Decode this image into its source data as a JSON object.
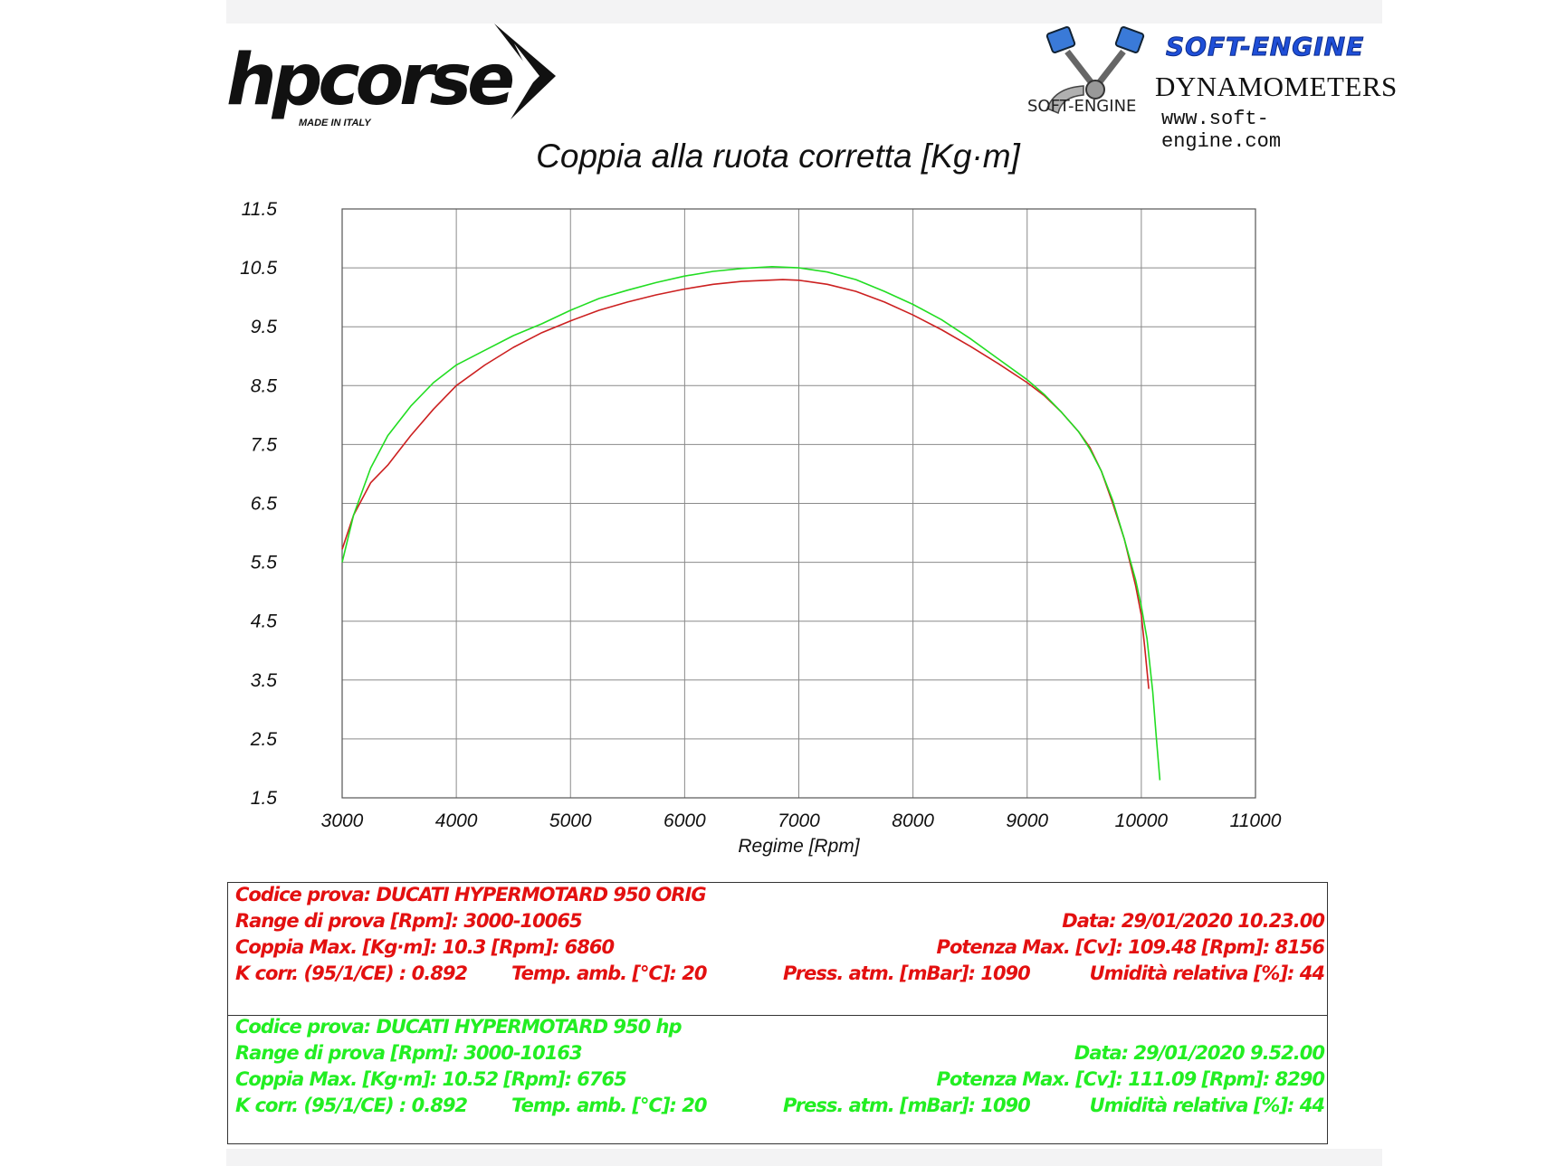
{
  "branding": {
    "left_logo_word": "hpcorse",
    "left_logo_sub": "MADE IN ITALY",
    "right_logo_brand": "SOFT-ENGINE",
    "right_logo_title": "DYNAMOMETERS",
    "right_logo_url": "www.soft-engine.com",
    "right_logo_small": "SOFT-ENGINE"
  },
  "chart_data": {
    "type": "line",
    "title": "Coppia alla ruota corretta [Kg·m]",
    "xlabel": "Regime [Rpm]",
    "ylabel": "",
    "xlim": [
      3000,
      11000
    ],
    "ylim": [
      1.5,
      11.5
    ],
    "xticks": [
      "3000",
      "4000",
      "5000",
      "6000",
      "7000",
      "8000",
      "9000",
      "10000",
      "11000"
    ],
    "yticks": [
      "11.5",
      "10.5",
      "9.5",
      "8.5",
      "7.5",
      "6.5",
      "5.5",
      "4.5",
      "3.5",
      "2.5",
      "1.5"
    ],
    "grid": true,
    "legend": "none",
    "series": [
      {
        "color": "#cc2020",
        "points": [
          [
            3000,
            5.72
          ],
          [
            3100,
            6.3
          ],
          [
            3250,
            6.85
          ],
          [
            3400,
            7.15
          ],
          [
            3600,
            7.65
          ],
          [
            3800,
            8.1
          ],
          [
            4000,
            8.5
          ],
          [
            4250,
            8.85
          ],
          [
            4500,
            9.15
          ],
          [
            4750,
            9.4
          ],
          [
            5000,
            9.6
          ],
          [
            5250,
            9.78
          ],
          [
            5500,
            9.92
          ],
          [
            5750,
            10.04
          ],
          [
            6000,
            10.14
          ],
          [
            6250,
            10.22
          ],
          [
            6500,
            10.27
          ],
          [
            6860,
            10.3
          ],
          [
            7000,
            10.29
          ],
          [
            7250,
            10.22
          ],
          [
            7500,
            10.1
          ],
          [
            7750,
            9.92
          ],
          [
            8000,
            9.7
          ],
          [
            8250,
            9.45
          ],
          [
            8500,
            9.17
          ],
          [
            8750,
            8.87
          ],
          [
            9000,
            8.55
          ],
          [
            9150,
            8.33
          ],
          [
            9300,
            8.05
          ],
          [
            9450,
            7.72
          ],
          [
            9550,
            7.45
          ],
          [
            9650,
            7.05
          ],
          [
            9750,
            6.5
          ],
          [
            9850,
            5.9
          ],
          [
            9950,
            5.1
          ],
          [
            10000,
            4.6
          ],
          [
            10030,
            4.05
          ],
          [
            10065,
            3.35
          ]
        ]
      },
      {
        "color": "#22dd22",
        "points": [
          [
            3000,
            5.5
          ],
          [
            3100,
            6.3
          ],
          [
            3250,
            7.1
          ],
          [
            3400,
            7.65
          ],
          [
            3600,
            8.15
          ],
          [
            3800,
            8.55
          ],
          [
            4000,
            8.85
          ],
          [
            4250,
            9.1
          ],
          [
            4500,
            9.35
          ],
          [
            4750,
            9.55
          ],
          [
            5000,
            9.78
          ],
          [
            5250,
            9.98
          ],
          [
            5500,
            10.12
          ],
          [
            5750,
            10.25
          ],
          [
            6000,
            10.36
          ],
          [
            6250,
            10.44
          ],
          [
            6500,
            10.49
          ],
          [
            6765,
            10.52
          ],
          [
            7000,
            10.5
          ],
          [
            7250,
            10.43
          ],
          [
            7500,
            10.3
          ],
          [
            7750,
            10.1
          ],
          [
            8000,
            9.88
          ],
          [
            8250,
            9.62
          ],
          [
            8500,
            9.3
          ],
          [
            8750,
            8.95
          ],
          [
            9000,
            8.6
          ],
          [
            9150,
            8.35
          ],
          [
            9300,
            8.05
          ],
          [
            9450,
            7.72
          ],
          [
            9550,
            7.42
          ],
          [
            9650,
            7.05
          ],
          [
            9750,
            6.55
          ],
          [
            9850,
            5.9
          ],
          [
            9950,
            5.2
          ],
          [
            10000,
            4.75
          ],
          [
            10050,
            4.2
          ],
          [
            10100,
            3.3
          ],
          [
            10130,
            2.55
          ],
          [
            10163,
            1.8
          ]
        ]
      }
    ]
  },
  "tests": [
    {
      "color": "#e31010",
      "codice": "Codice prova: DUCATI HYPERMOTARD 950 ORIG",
      "range": "Range di prova [Rpm]: 3000-10065",
      "data": "Data: 29/01/2020  10.23.00",
      "coppia": "Coppia Max. [Kg·m]: 10.3  [Rpm]: 6860",
      "potenza": "Potenza Max. [Cv]: 109.48  [Rpm]: 8156",
      "kcorr": "K corr. (95/1/CE) : 0.892",
      "temp": "Temp. amb. [°C]: 20",
      "press": "Press. atm. [mBar]: 1090",
      "umid": "Umidità relativa [%]: 44"
    },
    {
      "color": "#22ee22",
      "codice": "Codice prova: DUCATI HYPERMOTARD 950 hp",
      "range": "Range di prova [Rpm]: 3000-10163",
      "data": "Data: 29/01/2020  9.52.00",
      "coppia": "Coppia Max. [Kg·m]: 10.52  [Rpm]: 6765",
      "potenza": "Potenza Max. [Cv]: 111.09  [Rpm]: 8290",
      "kcorr": "K corr. (95/1/CE) : 0.892",
      "temp": "Temp. amb. [°C]: 20",
      "press": "Press. atm. [mBar]: 1090",
      "umid": "Umidità relativa [%]: 44"
    }
  ]
}
